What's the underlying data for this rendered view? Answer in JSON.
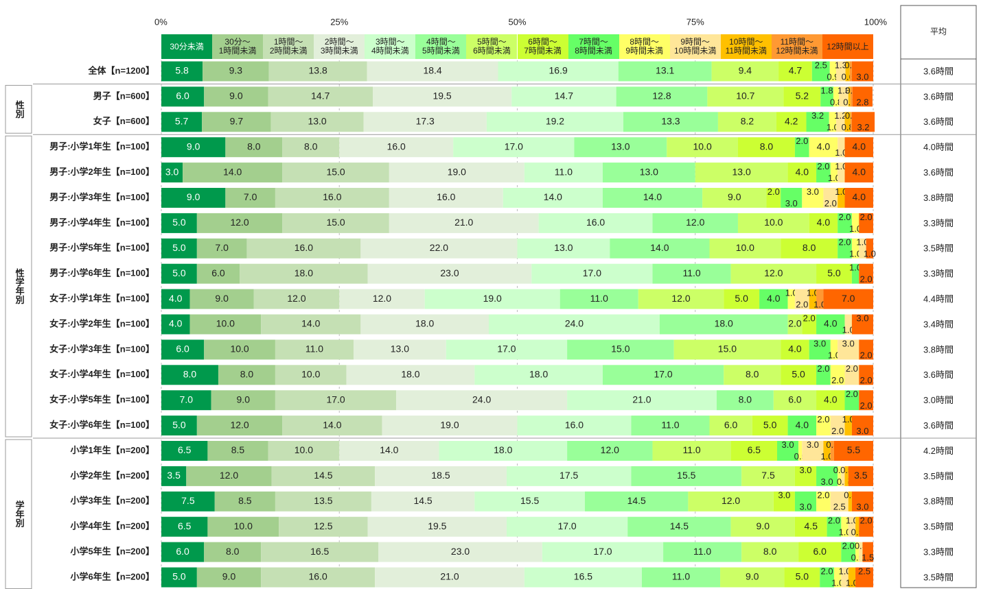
{
  "chart_data": {
    "type": "stacked-bar-horizontal",
    "xlim": [
      0,
      100
    ],
    "xticks": [
      {
        "value": 0,
        "label": "0%"
      },
      {
        "value": 25,
        "label": "25%"
      },
      {
        "value": 50,
        "label": "50%"
      },
      {
        "value": 75,
        "label": "75%"
      },
      {
        "value": 100,
        "label": "100%"
      }
    ],
    "grid": true,
    "categories": [
      "全体【n=1200】",
      "男子【n=600】",
      "女子【n=600】",
      "男子:小学1年生【n=100】",
      "男子:小学2年生【n=100】",
      "男子:小学3年生【n=100】",
      "男子:小学4年生【n=100】",
      "男子:小学5年生【n=100】",
      "男子:小学6年生【n=100】",
      "女子:小学1年生【n=100】",
      "女子:小学2年生【n=100】",
      "女子:小学3年生【n=100】",
      "女子:小学4年生【n=100】",
      "女子:小学5年生【n=100】",
      "女子:小学6年生【n=100】",
      "小学1年生【n=200】",
      "小学2年生【n=200】",
      "小学3年生【n=200】",
      "小学4年生【n=200】",
      "小学5年生【n=200】",
      "小学6年生【n=200】"
    ],
    "groups": [
      {
        "label": null,
        "span": 1
      },
      {
        "label": "性別",
        "span": 2
      },
      {
        "label": "性学年別",
        "span": 12
      },
      {
        "label": "学年別",
        "span": 6
      }
    ],
    "average_header": "平均",
    "averages": [
      "3.6時間",
      "3.6時間",
      "3.6時間",
      "4.0時間",
      "3.6時間",
      "3.8時間",
      "3.3時間",
      "3.5時間",
      "3.3時間",
      "4.4時間",
      "3.4時間",
      "3.8時間",
      "3.6時間",
      "3.0時間",
      "3.6時間",
      "4.2時間",
      "3.5時間",
      "3.8時間",
      "3.5時間",
      "3.3時間",
      "3.5時間"
    ],
    "series": [
      {
        "name": "30分未満",
        "color": "#00994c",
        "values": [
          5.8,
          6.0,
          5.7,
          9,
          3,
          9,
          5,
          5,
          5,
          4,
          4,
          6,
          8,
          7,
          5,
          6.5,
          3.5,
          7.5,
          6.5,
          6,
          5
        ],
        "value_labels": [
          "5.8",
          "6.0",
          "5.7",
          "9.0",
          "3.0",
          "9.0",
          "5.0",
          "5.0",
          "5.0",
          "4.0",
          "4.0",
          "6.0",
          "8.0",
          "7.0",
          "5.0",
          "6.5",
          "3.5",
          "7.5",
          "6.5",
          "6.0",
          "5.0"
        ]
      },
      {
        "name": "30分～\n1時間未満",
        "color": "#a3cf8e",
        "values": [
          9.3,
          9.0,
          9.7,
          8,
          14,
          7,
          12,
          7,
          6,
          9,
          10,
          10,
          8,
          9,
          12,
          8.5,
          12,
          8.5,
          10,
          8,
          9
        ],
        "value_labels": [
          "9.3",
          "9.0",
          "9.7",
          "8.0",
          "14.0",
          "7.0",
          "12.0",
          "7.0",
          "6.0",
          "9.0",
          "10.0",
          "10.0",
          "8.0",
          "9.0",
          "12.0",
          "8.5",
          "12.0",
          "8.5",
          "10.0",
          "8.0",
          "9.0"
        ]
      },
      {
        "name": "1時間～\n2時間未満",
        "color": "#c5e0b4",
        "values": [
          13.8,
          14.7,
          13.0,
          8,
          15,
          16,
          15,
          16,
          18,
          12,
          14,
          11,
          10,
          17,
          14,
          10,
          14.5,
          13.5,
          12.5,
          16.5,
          16
        ],
        "value_labels": [
          "13.8",
          "14.7",
          "13.0",
          "8.0",
          "15.0",
          "16.0",
          "15.0",
          "16.0",
          "18.0",
          "12.0",
          "14.0",
          "11.0",
          "10.0",
          "17.0",
          "14.0",
          "10.0",
          "14.5",
          "13.5",
          "12.5",
          "16.5",
          "16.0"
        ]
      },
      {
        "name": "2時間～\n3時間未満",
        "color": "#e2efda",
        "values": [
          18.4,
          19.5,
          17.3,
          16,
          19,
          16,
          21,
          22,
          23,
          12,
          18,
          13,
          18,
          24,
          19,
          14,
          18.5,
          14.5,
          19.5,
          23,
          21
        ],
        "value_labels": [
          "18.4",
          "19.5",
          "17.3",
          "16.0",
          "19.0",
          "16.0",
          "21.0",
          "22.0",
          "23.0",
          "12.0",
          "18.0",
          "13.0",
          "18.0",
          "24.0",
          "19.0",
          "14.0",
          "18.5",
          "14.5",
          "19.5",
          "23.0",
          "21.0"
        ]
      },
      {
        "name": "3時間～\n4時間未満",
        "color": "#ccffcc",
        "values": [
          16.9,
          14.7,
          19.2,
          17,
          11,
          14,
          16,
          13,
          17,
          19,
          24,
          17,
          18,
          21,
          16,
          18,
          17.5,
          15.5,
          17,
          17,
          16.5
        ],
        "value_labels": [
          "16.9",
          "14.7",
          "19.2",
          "17.0",
          "11.0",
          "14.0",
          "16.0",
          "13.0",
          "17.0",
          "19.0",
          "24.0",
          "17.0",
          "18.0",
          "21.0",
          "16.0",
          "18.0",
          "17.5",
          "15.5",
          "17.0",
          "17.0",
          "16.5"
        ]
      },
      {
        "name": "4時間～\n5時間未満",
        "color": "#99ff99",
        "values": [
          13.1,
          12.8,
          13.3,
          13,
          13,
          14,
          12,
          14,
          11,
          11,
          18,
          15,
          17,
          8,
          11,
          12,
          15.5,
          14.5,
          14.5,
          11,
          11
        ],
        "value_labels": [
          "13.1",
          "12.8",
          "13.3",
          "13.0",
          "13.0",
          "14.0",
          "12.0",
          "14.0",
          "11.0",
          "11.0",
          "18.0",
          "15.0",
          "17.0",
          "8.0",
          "11.0",
          "12.0",
          "15.5",
          "14.5",
          "14.5",
          "11.0",
          "11.0"
        ]
      },
      {
        "name": "5時間～\n6時間未満",
        "color": "#ccff66",
        "values": [
          9.4,
          10.7,
          8.2,
          10,
          13,
          9,
          10,
          10,
          12,
          12,
          2,
          15,
          8,
          6,
          6,
          11,
          7.5,
          12,
          9,
          8,
          9
        ],
        "value_labels": [
          "9.4",
          "10.7",
          "8.2",
          "10.0",
          "13.0",
          "9.0",
          "10.0",
          "10.0",
          "12.0",
          "12.0",
          "2.0",
          "15.0",
          "8.0",
          "6.0",
          "6.0",
          "11.0",
          "7.5",
          "12.0",
          "9.0",
          "8.0",
          "9.0"
        ]
      },
      {
        "name": "6時間～\n7時間未満",
        "color": "#ccff33",
        "values": [
          4.7,
          5.2,
          4.2,
          8,
          4,
          2,
          4,
          8,
          5,
          5,
          2,
          4,
          5,
          4,
          5,
          6.5,
          3,
          3,
          4.5,
          6,
          5
        ],
        "value_labels": [
          "4.7",
          "5.2",
          "4.2",
          "8.0",
          "4.0",
          "2.0",
          "4.0",
          "8.0",
          "5.0",
          "5.0",
          "2.0",
          "4.0",
          "5.0",
          "4.0",
          "5.0",
          "6.5",
          "3.0",
          "3.0",
          "4.5",
          "6.0",
          "5.0"
        ]
      },
      {
        "name": "7時間～\n8時間未満",
        "color": "#66ff66",
        "values": [
          2.5,
          1.8,
          3.2,
          2,
          2,
          3,
          2,
          2,
          1,
          4,
          4,
          3,
          2,
          2,
          4,
          3,
          3,
          3,
          2,
          2,
          2
        ],
        "value_labels": [
          "2.5",
          "1.8",
          "3.2",
          "2.0",
          "2.0",
          "3.0",
          "2.0",
          "2.0",
          "1.0",
          "4.0",
          "4.0",
          "3.0",
          "2.0",
          "2.0",
          "4.0",
          "3.0",
          "3.0",
          "3.0",
          "2.0",
          "2.0",
          "2.0"
        ]
      },
      {
        "name": "8時間～\n9時間未満",
        "color": "#ffff66",
        "values": [
          0.9,
          0.8,
          1.0,
          4,
          1,
          3,
          1,
          1,
          0,
          1,
          0,
          1,
          2,
          0,
          2,
          0.5,
          0.5,
          2,
          1,
          0.5,
          1
        ],
        "value_labels": [
          "0.9",
          "0.8",
          "1.0",
          "4.0",
          "1.0",
          "3.0",
          "1.0",
          "1.0",
          null,
          "1.0",
          null,
          "1.0",
          "2.0",
          null,
          "2.0",
          "0.5",
          "0.5",
          "2.0",
          "1.0",
          "0.5",
          "1.0"
        ]
      },
      {
        "name": "9時間～\n10時間未満",
        "color": "#ffe699",
        "values": [
          1.3,
          1.3,
          1.2,
          1,
          1,
          2,
          0,
          1,
          0,
          2,
          1,
          3,
          2,
          0,
          2,
          3,
          0.5,
          2.5,
          1,
          0.5,
          1
        ],
        "value_labels": [
          "1.3",
          "1.3",
          "1.2",
          "1.0",
          "1.0",
          "2.0",
          null,
          "1.0",
          null,
          "2.0",
          "1.0",
          "3.0",
          "2.0",
          null,
          "2.0",
          "3.0",
          "0.5",
          "2.5",
          "1.0",
          "0.5",
          "1.0"
        ]
      },
      {
        "name": "10時間～\n11時間未満",
        "color": "#ffc000",
        "values": [
          0.6,
          0.3,
          0.8,
          0,
          0,
          1,
          0,
          0,
          0,
          1,
          0,
          0,
          0,
          0,
          1,
          1,
          0.5,
          0.5,
          0.5,
          0,
          1
        ],
        "value_labels": [
          "0.6",
          "0.3",
          "0.8",
          null,
          null,
          "1.0",
          null,
          null,
          null,
          "1.0",
          null,
          null,
          null,
          null,
          "1.0",
          "1.0",
          "0.5",
          "0.5",
          "0.5",
          null,
          "1.0"
        ]
      },
      {
        "name": "11時間～\n12時間未満",
        "color": "#ff9933",
        "values": [
          0.3,
          0.3,
          0.2,
          0,
          0,
          0,
          0,
          0,
          0,
          1,
          0,
          0,
          0,
          0,
          0,
          0.5,
          0,
          0,
          0,
          0,
          0
        ],
        "value_labels": [
          "0.3",
          "0.3",
          "0.2",
          null,
          null,
          null,
          null,
          null,
          null,
          "1.0",
          null,
          null,
          null,
          null,
          null,
          "0.5",
          null,
          null,
          null,
          null,
          null
        ]
      },
      {
        "name": "12時間以上",
        "color": "#ff6600",
        "values": [
          3.0,
          2.8,
          3.2,
          4,
          4,
          4,
          2,
          1,
          2,
          7,
          3,
          2,
          2,
          2,
          3,
          5.5,
          3.5,
          3,
          2,
          1.5,
          2.5
        ],
        "value_labels": [
          "3.0",
          "2.8",
          "3.2",
          "4.0",
          "4.0",
          "4.0",
          "2.0",
          "1.0",
          "2.0",
          "7.0",
          "3.0",
          "2.0",
          "2.0",
          "2.0",
          "3.0",
          "5.5",
          "3.5",
          "3.0",
          "2.0",
          "1.5",
          "2.5"
        ]
      }
    ]
  }
}
